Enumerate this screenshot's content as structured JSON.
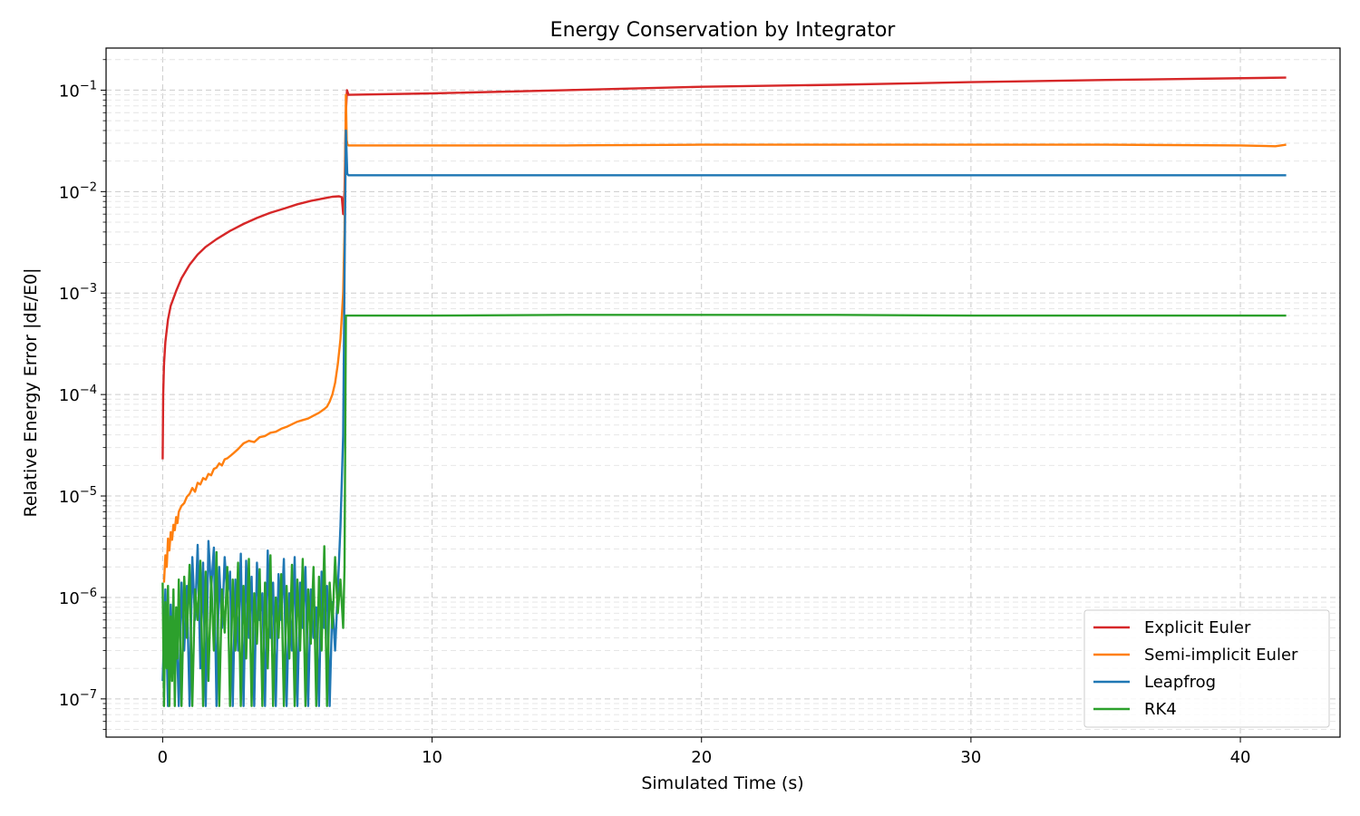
{
  "chart_data": {
    "type": "line",
    "title": "Energy Conservation by Integrator",
    "xlabel": "Simulated Time (s)",
    "ylabel": "Relative Energy Error |dE/E0|",
    "xlim": [
      -2.1,
      43.7
    ],
    "ylim": [
      4.2e-08,
      0.26
    ],
    "yscale": "log",
    "grid": true,
    "legend_position": "lower-right",
    "x_ticks": [
      0,
      10,
      20,
      30,
      40
    ],
    "x_tick_labels": [
      "0",
      "10",
      "20",
      "30",
      "40"
    ],
    "y_ticks": [
      1e-07,
      1e-06,
      1e-05,
      0.0001,
      0.001,
      0.01,
      0.1
    ],
    "y_tick_labels": [
      {
        "base": "10",
        "exp": "−7"
      },
      {
        "base": "10",
        "exp": "−6"
      },
      {
        "base": "10",
        "exp": "−5"
      },
      {
        "base": "10",
        "exp": "−4"
      },
      {
        "base": "10",
        "exp": "−3"
      },
      {
        "base": "10",
        "exp": "−2"
      },
      {
        "base": "10",
        "exp": "−1"
      }
    ],
    "series": [
      {
        "name": "Explicit Euler",
        "color": "#d62728",
        "x": [
          0,
          0.02,
          0.05,
          0.1,
          0.2,
          0.3,
          0.5,
          0.7,
          1.0,
          1.3,
          1.6,
          2.0,
          2.5,
          3.0,
          3.5,
          4.0,
          4.5,
          5.0,
          5.5,
          6.0,
          6.3,
          6.55,
          6.65,
          6.7,
          6.75,
          6.8,
          6.84,
          6.9,
          10,
          15,
          20,
          25,
          30,
          35,
          41.7
        ],
        "y": [
          2.3e-05,
          0.0001,
          0.0002,
          0.00033,
          0.00055,
          0.00075,
          0.00105,
          0.0014,
          0.0019,
          0.0024,
          0.00285,
          0.0034,
          0.0041,
          0.0048,
          0.0055,
          0.0062,
          0.0068,
          0.0075,
          0.0081,
          0.0086,
          0.0089,
          0.009,
          0.0088,
          0.006,
          0.01,
          0.06,
          0.1,
          0.09,
          0.093,
          0.1,
          0.108,
          0.113,
          0.12,
          0.126,
          0.133
        ]
      },
      {
        "name": "Semi-implicit Euler",
        "color": "#ff7f0e",
        "x": [
          0.05,
          0.1,
          0.15,
          0.2,
          0.25,
          0.3,
          0.35,
          0.4,
          0.45,
          0.5,
          0.55,
          0.6,
          0.7,
          0.8,
          0.9,
          1.0,
          1.1,
          1.2,
          1.3,
          1.4,
          1.5,
          1.6,
          1.7,
          1.8,
          1.9,
          2.0,
          2.1,
          2.2,
          2.3,
          2.4,
          2.6,
          2.8,
          3.0,
          3.2,
          3.4,
          3.6,
          3.8,
          4.0,
          4.2,
          4.4,
          4.6,
          4.8,
          5.0,
          5.2,
          5.4,
          5.6,
          5.8,
          6.0,
          6.1,
          6.2,
          6.3,
          6.4,
          6.5,
          6.6,
          6.7,
          6.75,
          6.8,
          6.83,
          6.86,
          6.9,
          7.0,
          8,
          10,
          15,
          20,
          25,
          30,
          35,
          40,
          41.3,
          41.7
        ],
        "y": [
          1.4e-06,
          2.6e-06,
          2e-06,
          3.8e-06,
          2.9e-06,
          4.4e-06,
          3.7e-06,
          5.2e-06,
          4.6e-06,
          6.2e-06,
          5.4e-06,
          7e-06,
          8e-06,
          8.5e-06,
          9.8e-06,
          1.05e-05,
          1.2e-05,
          1.1e-05,
          1.35e-05,
          1.3e-05,
          1.5e-05,
          1.45e-05,
          1.65e-05,
          1.6e-05,
          1.85e-05,
          1.9e-05,
          2.1e-05,
          2e-05,
          2.3e-05,
          2.35e-05,
          2.6e-05,
          2.9e-05,
          3.3e-05,
          3.5e-05,
          3.4e-05,
          3.8e-05,
          3.9e-05,
          4.2e-05,
          4.3e-05,
          4.6e-05,
          4.8e-05,
          5.1e-05,
          5.4e-05,
          5.6e-05,
          5.8e-05,
          6.2e-05,
          6.6e-05,
          7.2e-05,
          7.6e-05,
          8.5e-05,
          0.0001,
          0.00013,
          0.0002,
          0.00035,
          0.001,
          0.004,
          0.09,
          0.032,
          0.029,
          0.0285,
          0.0285,
          0.0285,
          0.0285,
          0.0285,
          0.029,
          0.029,
          0.029,
          0.029,
          0.0285,
          0.028,
          0.029
        ]
      },
      {
        "name": "Leapfrog",
        "color": "#1f77b4",
        "x": [
          0,
          0.1,
          0.2,
          0.3,
          0.4,
          0.5,
          0.6,
          0.7,
          0.8,
          0.9,
          1.0,
          1.1,
          1.2,
          1.3,
          1.4,
          1.5,
          1.6,
          1.7,
          1.8,
          1.9,
          2.0,
          2.1,
          2.2,
          2.3,
          2.4,
          2.5,
          2.6,
          2.7,
          2.8,
          2.9,
          3.0,
          3.1,
          3.2,
          3.3,
          3.4,
          3.5,
          3.6,
          3.7,
          3.8,
          3.9,
          4.0,
          4.1,
          4.2,
          4.3,
          4.4,
          4.5,
          4.6,
          4.7,
          4.8,
          4.9,
          5.0,
          5.1,
          5.2,
          5.3,
          5.4,
          5.5,
          5.6,
          5.7,
          5.8,
          5.9,
          6.0,
          6.1,
          6.2,
          6.3,
          6.4,
          6.5,
          6.6,
          6.7,
          6.75,
          6.8,
          6.85,
          6.9,
          7.0,
          10,
          20,
          30,
          41.7
        ],
        "y": [
          1.5e-07,
          1.2e-06,
          8.5e-08,
          8.5e-07,
          1.8e-07,
          6.5e-07,
          8.5e-08,
          1.4e-06,
          3e-07,
          1.3e-06,
          8.5e-08,
          2.5e-06,
          6e-07,
          3.3e-06,
          2e-07,
          2.2e-06,
          8.5e-08,
          3.6e-06,
          1.2e-06,
          3.1e-06,
          8.5e-08,
          2e-06,
          5e-07,
          2.5e-06,
          1e-06,
          1.8e-06,
          8.5e-08,
          1.5e-06,
          3e-07,
          2.7e-06,
          8.5e-08,
          2.3e-06,
          4e-07,
          1.6e-06,
          8.5e-08,
          2.2e-06,
          6e-07,
          1.1e-06,
          8.5e-08,
          2.9e-06,
          4e-07,
          1.4e-06,
          8.5e-08,
          1.7e-06,
          6e-07,
          2.4e-06,
          8.5e-08,
          1.1e-06,
          3e-07,
          2.5e-06,
          8.5e-08,
          1.4e-06,
          5e-07,
          2e-06,
          8.5e-08,
          1.2e-06,
          4e-07,
          8e-07,
          8.5e-08,
          1.8e-06,
          5e-07,
          1.3e-06,
          8.5e-08,
          9e-07,
          3e-07,
          1.2e-06,
          5e-06,
          4e-05,
          0.0015,
          0.04,
          0.015,
          0.0145,
          0.0145,
          0.0145,
          0.0145,
          0.0145,
          0.0145
        ]
      },
      {
        "name": "RK4",
        "color": "#2ca02c",
        "x": [
          0,
          0.05,
          0.1,
          0.15,
          0.2,
          0.25,
          0.3,
          0.35,
          0.4,
          0.45,
          0.5,
          0.55,
          0.6,
          0.7,
          0.8,
          0.9,
          1.0,
          1.1,
          1.2,
          1.3,
          1.4,
          1.5,
          1.6,
          1.7,
          1.8,
          1.9,
          2.0,
          2.1,
          2.2,
          2.3,
          2.4,
          2.5,
          2.6,
          2.7,
          2.8,
          2.9,
          3.0,
          3.1,
          3.2,
          3.3,
          3.4,
          3.5,
          3.6,
          3.7,
          3.8,
          3.9,
          4.0,
          4.1,
          4.2,
          4.3,
          4.4,
          4.5,
          4.6,
          4.7,
          4.8,
          4.9,
          5.0,
          5.1,
          5.2,
          5.3,
          5.4,
          5.5,
          5.6,
          5.7,
          5.8,
          5.9,
          6.0,
          6.1,
          6.2,
          6.3,
          6.4,
          6.5,
          6.6,
          6.7,
          6.75,
          6.8,
          6.85,
          6.9,
          7.0,
          10,
          15,
          20,
          25,
          30,
          35,
          41.7
        ],
        "y": [
          1.4e-06,
          8.5e-08,
          9e-07,
          2e-07,
          1.3e-06,
          8.5e-08,
          6.5e-07,
          1.5e-07,
          1.2e-06,
          8.5e-08,
          8e-07,
          2.5e-07,
          1.5e-06,
          8.5e-08,
          1.6e-06,
          4e-07,
          2.1e-06,
          8.5e-08,
          1.2e-06,
          6e-07,
          2.3e-06,
          8.5e-08,
          1.8e-06,
          1.5e-07,
          1.6e-06,
          3e-07,
          2.8e-06,
          8.5e-08,
          1.2e-06,
          4.5e-07,
          2e-06,
          8.5e-08,
          1.5e-06,
          3e-07,
          2.2e-06,
          8.5e-08,
          1.3e-06,
          2.5e-07,
          2.4e-06,
          8.5e-08,
          1.1e-06,
          3.5e-07,
          1.9e-06,
          8.5e-08,
          1.4e-06,
          2e-07,
          2.6e-06,
          8.5e-08,
          1e-06,
          4e-07,
          1.7e-06,
          8.5e-08,
          1.3e-06,
          2.5e-07,
          2.1e-06,
          8.5e-08,
          1.5e-06,
          3e-07,
          2.4e-06,
          8.5e-08,
          1.2e-06,
          3.5e-07,
          2e-06,
          8.5e-08,
          1.6e-06,
          3e-07,
          3.2e-06,
          8.5e-08,
          1.4e-06,
          5e-07,
          2.5e-06,
          7e-07,
          1.5e-06,
          5e-07,
          2e-06,
          0.0006,
          0.0006,
          0.0006,
          0.0006,
          0.0006,
          0.00061,
          0.00061,
          0.00061,
          0.0006,
          0.0006,
          0.0006
        ]
      }
    ]
  }
}
